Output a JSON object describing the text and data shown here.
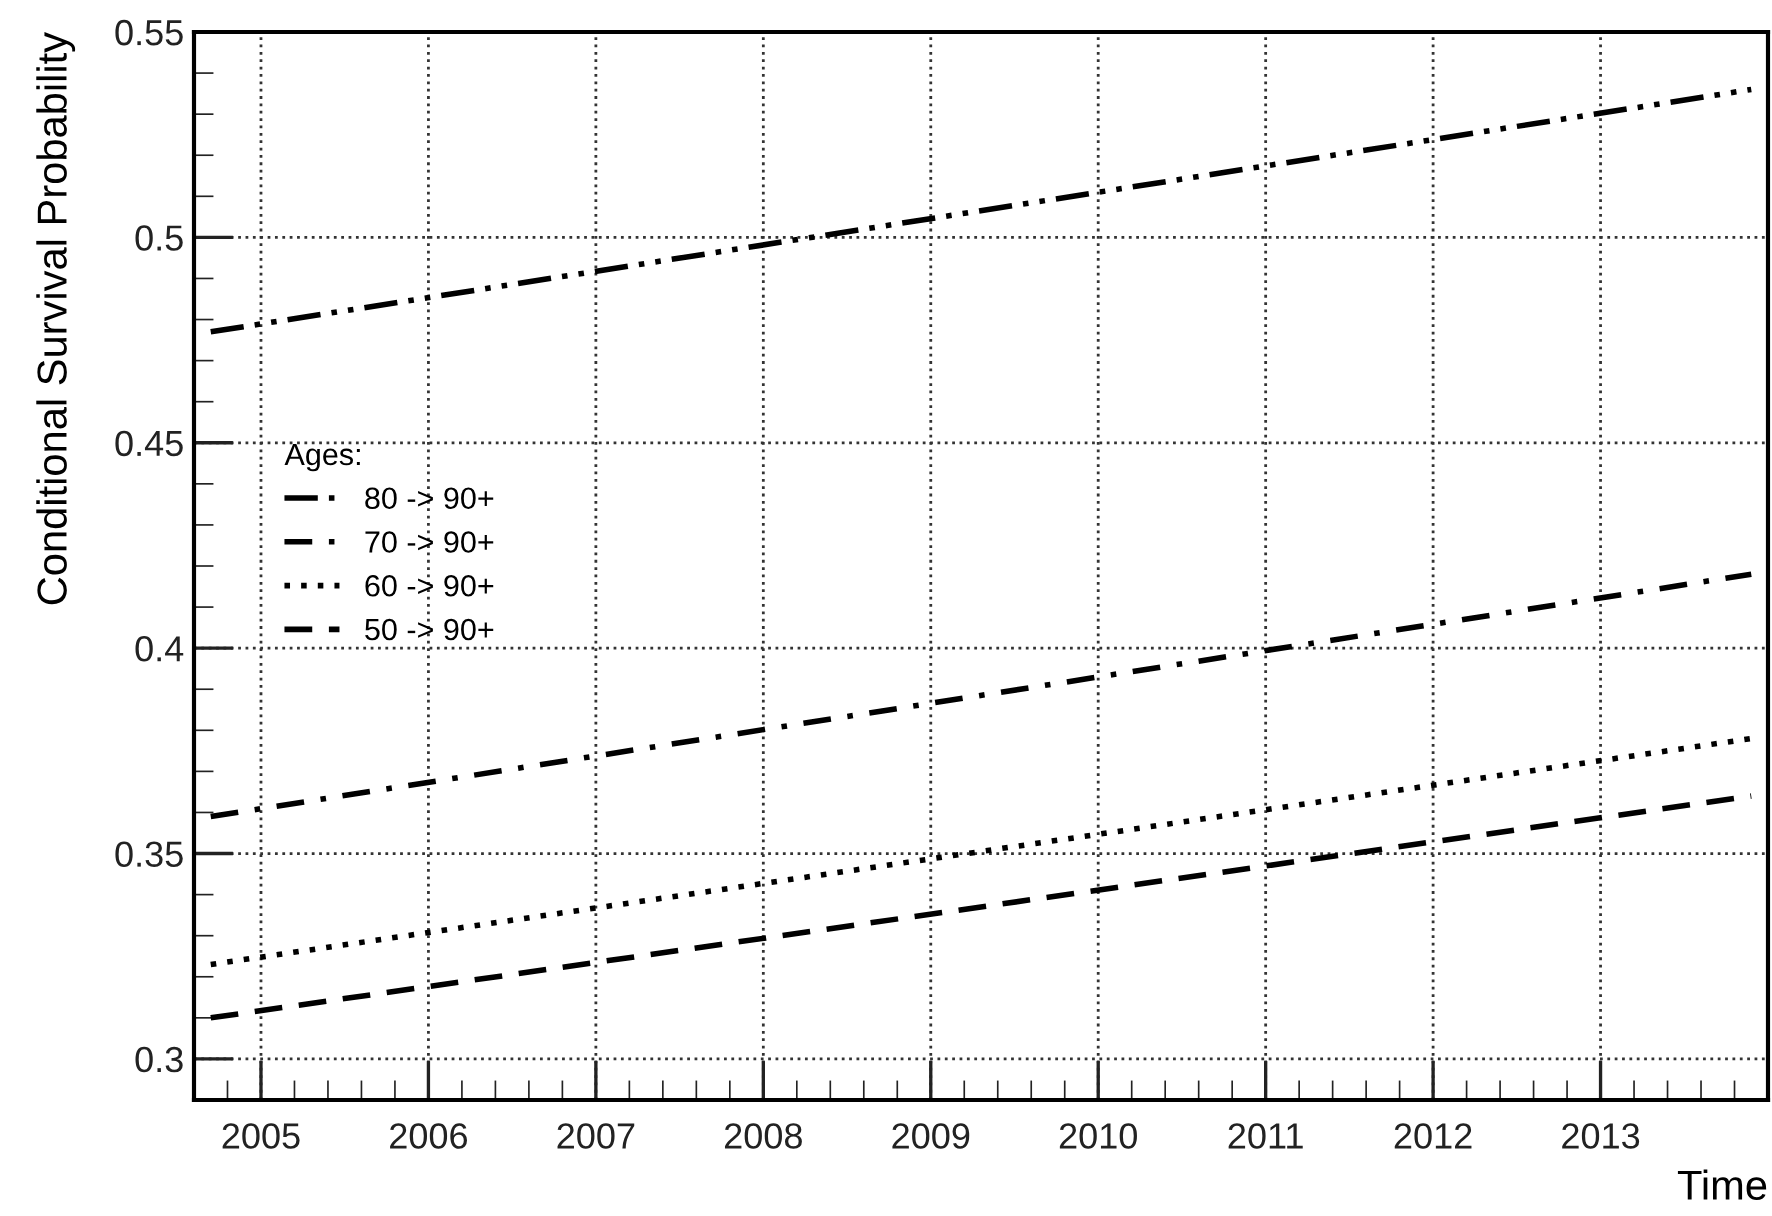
{
  "chart_data": {
    "type": "line",
    "xlabel": "Time",
    "ylabel": "Conditional Survival Probability",
    "legend_title": "Ages:",
    "xlim": [
      2004.6,
      2014.0
    ],
    "xticks": [
      2005,
      2006,
      2007,
      2008,
      2009,
      2010,
      2011,
      2012,
      2013
    ],
    "ylim": [
      0.29,
      0.55
    ],
    "yticks": [
      0.3,
      0.35,
      0.4,
      0.45,
      0.5,
      0.55
    ],
    "grid": true,
    "legend": "left",
    "marker": "none",
    "x": [
      2004.7,
      2013.9
    ],
    "series": [
      {
        "name": "80 -> 90+",
        "color": "#000000",
        "line_style": "dashdotdot",
        "values": [
          0.477,
          0.536
        ]
      },
      {
        "name": "70 -> 90+",
        "color": "#000000",
        "line_style": "dashdot",
        "values": [
          0.359,
          0.418
        ]
      },
      {
        "name": "60 -> 90+",
        "color": "#000000",
        "line_style": "dotted",
        "values": [
          0.323,
          0.378
        ]
      },
      {
        "name": "50 -> 90+",
        "color": "#000000",
        "line_style": "dashed",
        "values": [
          0.31,
          0.364
        ]
      }
    ]
  }
}
